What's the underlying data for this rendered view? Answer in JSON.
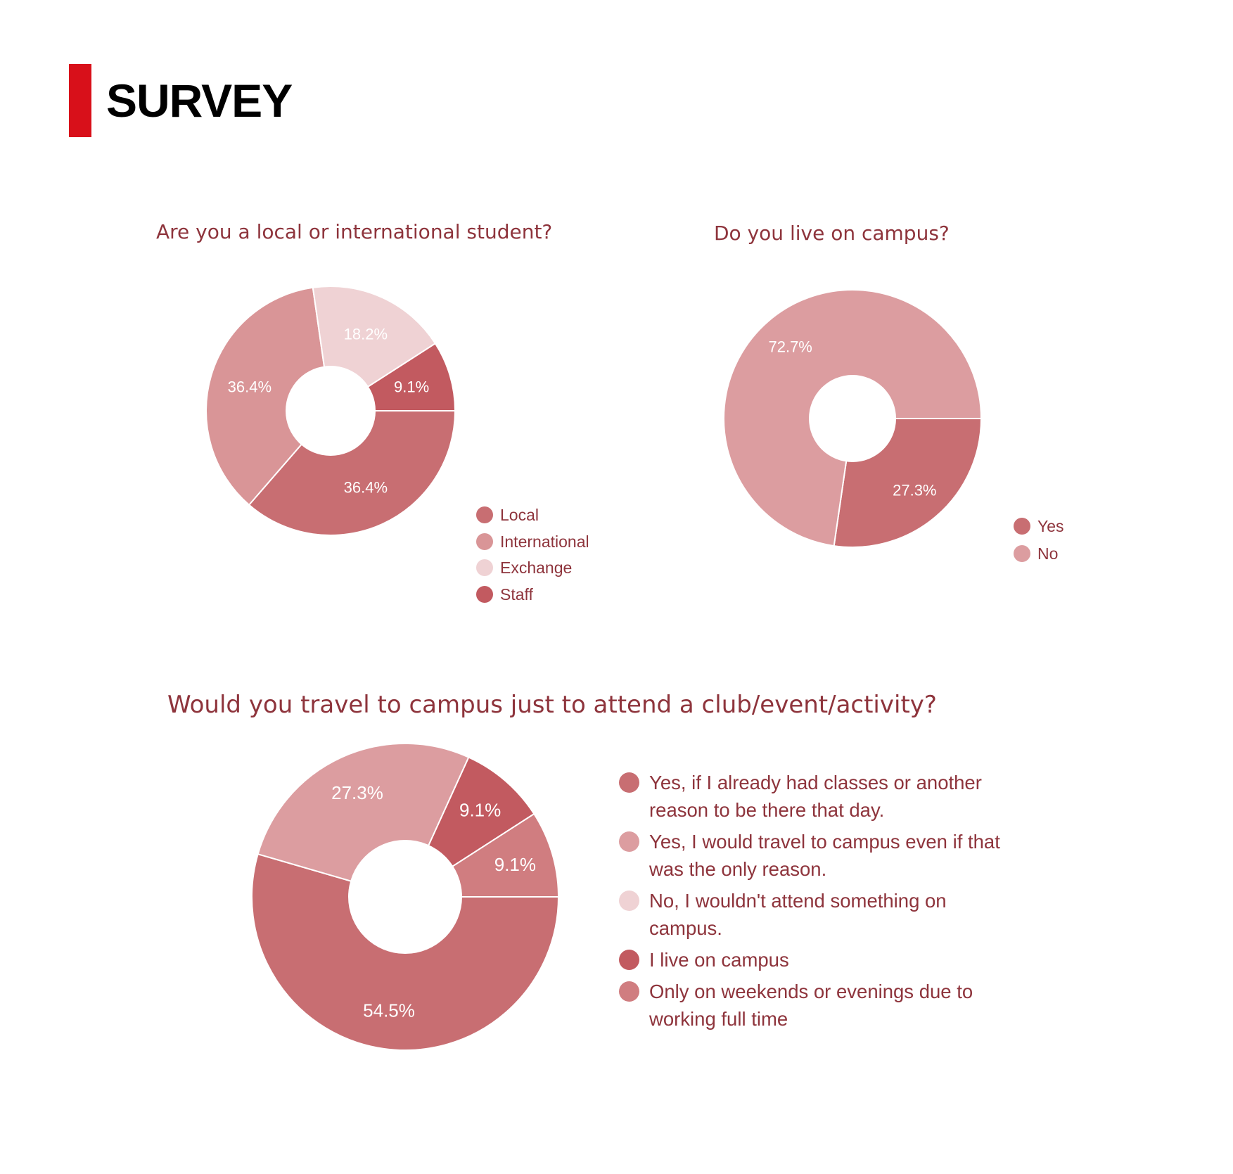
{
  "page": {
    "title": "SURVEY",
    "accent_color": "#d8101a"
  },
  "chart_data": [
    {
      "type": "pie",
      "title": "Are you a local or international student?",
      "slices": [
        {
          "label": "Local",
          "value": 36.4,
          "display": "36.4%",
          "color": "#c86e72"
        },
        {
          "label": "International",
          "value": 36.4,
          "display": "36.4%",
          "color": "#d99597"
        },
        {
          "label": "Exchange",
          "value": 18.2,
          "display": "18.2%",
          "color": "#efd2d4"
        },
        {
          "label": "Staff",
          "value": 9.1,
          "display": "9.1%",
          "color": "#c25a60"
        }
      ],
      "legend_position": "bottom-right"
    },
    {
      "type": "pie",
      "title": "Do you live on campus?",
      "slices": [
        {
          "label": "Yes",
          "value": 27.3,
          "display": "27.3%",
          "color": "#c86e72"
        },
        {
          "label": "No",
          "value": 72.7,
          "display": "72.7%",
          "color": "#dc9da0"
        }
      ],
      "legend_position": "bottom-right"
    },
    {
      "type": "pie",
      "title": "Would you travel to campus just to attend a club/event/activity?",
      "slices": [
        {
          "label": "Yes, if I already had classes or another reason to be there that day.",
          "value": 54.5,
          "display": "54.5%",
          "color": "#c86e72"
        },
        {
          "label": "Yes, I would travel to campus even if that was the only reason.",
          "value": 27.3,
          "display": "27.3%",
          "color": "#dc9da0"
        },
        {
          "label": "No, I wouldn't attend something on campus.",
          "value": 0,
          "display": "",
          "color": "#efd2d4"
        },
        {
          "label": "I live on campus",
          "value": 9.1,
          "display": "9.1%",
          "color": "#c25a60"
        },
        {
          "label": "Only on weekends or evenings due to working full time",
          "value": 9.1,
          "display": "9.1%",
          "color": "#d07d80"
        }
      ],
      "legend_position": "right"
    }
  ]
}
